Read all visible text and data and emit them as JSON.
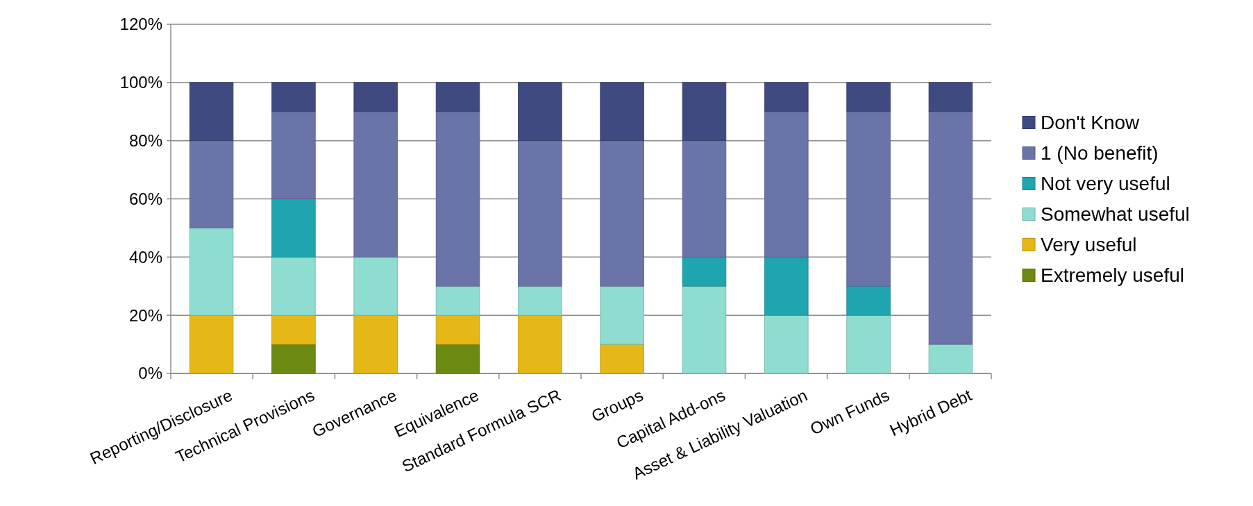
{
  "chart_data": {
    "type": "bar",
    "stacked": true,
    "categories": [
      "Reporting/Disclosure",
      "Technical Provisions",
      "Governance",
      "Equivalence",
      "Standard Formula SCR",
      "Groups",
      "Capital Add-ons",
      "Asset & Liability Valuation",
      "Own Funds",
      "Hybrid Debt"
    ],
    "series": [
      {
        "name": "Extremely useful",
        "color": "#6b8a12",
        "values": [
          0,
          10,
          0,
          10,
          0,
          0,
          0,
          0,
          0,
          0
        ]
      },
      {
        "name": "Very useful",
        "color": "#e6b817",
        "values": [
          20,
          10,
          20,
          10,
          20,
          10,
          0,
          0,
          0,
          0
        ]
      },
      {
        "name": "Somewhat useful",
        "color": "#8fdcd0",
        "values": [
          30,
          20,
          20,
          10,
          10,
          20,
          30,
          20,
          20,
          10
        ]
      },
      {
        "name": "Not very useful",
        "color": "#1fa5b0",
        "values": [
          0,
          20,
          0,
          0,
          0,
          0,
          10,
          20,
          10,
          0
        ]
      },
      {
        "name": "1 (No benefit)",
        "color": "#6a74a8",
        "values": [
          30,
          30,
          50,
          60,
          50,
          50,
          40,
          50,
          60,
          80
        ]
      },
      {
        "name": "Don't Know",
        "color": "#3f4a80",
        "values": [
          20,
          10,
          10,
          10,
          20,
          20,
          20,
          10,
          10,
          10
        ]
      }
    ],
    "ylim": [
      0,
      120
    ],
    "yticks": [
      {
        "value": 0,
        "label": "0%"
      },
      {
        "value": 20,
        "label": "20%"
      },
      {
        "value": 40,
        "label": "40%"
      },
      {
        "value": 60,
        "label": "60%"
      },
      {
        "value": 80,
        "label": "80%"
      },
      {
        "value": 100,
        "label": "100%"
      },
      {
        "value": 120,
        "label": "120%"
      }
    ],
    "grid": "y",
    "legend": "right"
  }
}
